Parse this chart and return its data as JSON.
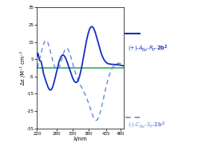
{
  "xlim": [
    220,
    490
  ],
  "ylim": [
    -35,
    35
  ],
  "xlabel": "λ/nm",
  "ylabel": "Δε /M⁻¹ cm⁻¹",
  "xticks": [
    220,
    280,
    330,
    380,
    435,
    480
  ],
  "xtick_labels": [
    "220",
    "280",
    "330",
    "380",
    "435",
    "480"
  ],
  "yticks": [
    -35,
    -25,
    -15,
    -5,
    5,
    15,
    25,
    35
  ],
  "background_color": "#ffffff",
  "solid_color": "#1530c0",
  "dashed_color": "#6688dd",
  "zero_line_color": "#3aaa66",
  "label_solid": "(+)-A_{Re}-R_P-2b^2",
  "label_dashed": "(-)-C_{Re}-S_P-2b^2",
  "figsize": [
    2.58,
    1.89
  ],
  "dpi": 100
}
